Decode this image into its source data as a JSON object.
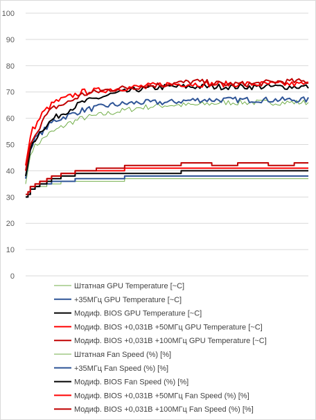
{
  "chart_data": {
    "type": "line",
    "title": "",
    "xlabel": "",
    "ylabel": "",
    "ylim": [
      0,
      100
    ],
    "yticks": [
      0,
      10,
      20,
      30,
      40,
      50,
      60,
      70,
      80,
      90,
      100
    ],
    "grid": "horizontal",
    "legend_position": "bottom",
    "x": [
      0,
      2,
      4,
      6,
      8,
      10,
      15,
      20,
      30,
      40,
      50,
      60,
      70,
      80,
      90,
      100
    ],
    "series": [
      {
        "name": "Штатная GPU Temperature [~C]",
        "color": "#70ad47",
        "width": 1,
        "values": [
          35,
          48,
          50,
          52,
          54,
          55,
          58,
          60,
          62,
          64,
          65,
          65,
          66,
          66,
          66,
          66
        ]
      },
      {
        "name": "+35МГц GPU Temperature [~C]",
        "color": "#2f5597",
        "width": 2,
        "values": [
          37,
          50,
          53,
          55,
          57,
          59,
          61,
          63,
          65,
          66,
          66,
          67,
          67,
          67,
          67,
          67
        ]
      },
      {
        "name": "Модиф. BIOS GPU Temperature [~C]",
        "color": "#000000",
        "width": 2,
        "values": [
          38,
          50,
          53,
          56,
          58,
          60,
          63,
          66,
          69,
          71,
          72,
          72,
          72,
          72,
          72,
          72
        ]
      },
      {
        "name": "Модиф. BIOS +0,031В +50МГц GPU Temperature [~C]",
        "color": "#ff0000",
        "width": 2,
        "values": [
          42,
          55,
          58,
          62,
          64,
          66,
          68,
          70,
          71,
          72,
          73,
          73,
          73,
          73,
          73,
          73
        ]
      },
      {
        "name": "Модиф. BIOS +0,031В +100МГц GPU Temperature [~C]",
        "color": "#c00000",
        "width": 2,
        "values": [
          40,
          52,
          55,
          59,
          62,
          64,
          66,
          69,
          71,
          72,
          73,
          74,
          73,
          73,
          74,
          74
        ]
      },
      {
        "name": "Штатная Fan Speed (%) [%]",
        "color": "#70ad47",
        "width": 1,
        "values": [
          30,
          33,
          34,
          34,
          35,
          35,
          36,
          36,
          36,
          37,
          37,
          37,
          37,
          37,
          37,
          37
        ]
      },
      {
        "name": "+35МГц Fan Speed (%) [%]",
        "color": "#2f5597",
        "width": 2,
        "values": [
          30,
          33,
          34,
          35,
          35,
          36,
          36,
          37,
          37,
          38,
          38,
          38,
          38,
          38,
          38,
          38
        ]
      },
      {
        "name": "Модиф. BIOS Fan Speed (%) [%]",
        "color": "#000000",
        "width": 2,
        "values": [
          30,
          33,
          34,
          35,
          36,
          37,
          38,
          39,
          39,
          39,
          39,
          40,
          40,
          40,
          40,
          40
        ]
      },
      {
        "name": "Модиф. BIOS +0,031В +50МГц Fan Speed (%) [%]",
        "color": "#ff0000",
        "width": 2,
        "values": [
          31,
          34,
          35,
          36,
          37,
          38,
          39,
          40,
          40,
          41,
          41,
          41,
          41,
          41,
          41,
          41
        ]
      },
      {
        "name": "Модиф. BIOS +0,031В +100МГц Fan Speed (%) [%]",
        "color": "#c00000",
        "width": 2,
        "values": [
          31,
          34,
          35,
          36,
          37,
          38,
          39,
          40,
          41,
          42,
          42,
          43,
          42,
          43,
          42,
          43
        ]
      }
    ]
  }
}
